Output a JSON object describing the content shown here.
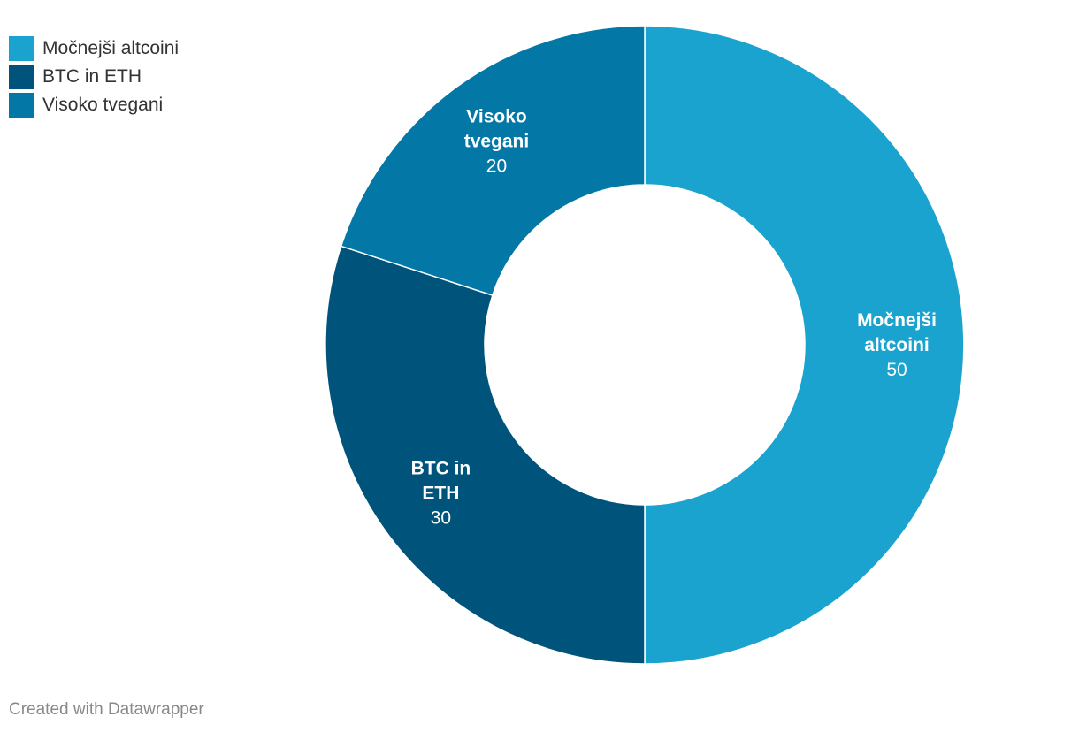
{
  "chart_data": {
    "type": "pie",
    "variant": "donut",
    "slices": [
      {
        "label": "Močnejši altcoini",
        "value": 50,
        "color": "#1ba3cf",
        "label_lines": [
          "Močnejši",
          "altcoini"
        ]
      },
      {
        "label": "BTC in ETH",
        "value": 30,
        "color": "#00537a",
        "label_lines": [
          "BTC in",
          "ETH"
        ]
      },
      {
        "label": "Visoko tvegani",
        "value": 20,
        "color": "#0378a6",
        "label_lines": [
          "Visoko",
          "tvegani"
        ]
      }
    ],
    "legend_position": "top-left",
    "start_angle": "12 o'clock",
    "direction": "clockwise"
  },
  "legend": {
    "items": [
      {
        "label": "Močnejši altcoini",
        "color": "#1ba3cf"
      },
      {
        "label": "BTC in ETH",
        "color": "#00537a"
      },
      {
        "label": "Visoko tvegani",
        "color": "#0378a6"
      }
    ]
  },
  "credit": "Created with Datawrapper"
}
